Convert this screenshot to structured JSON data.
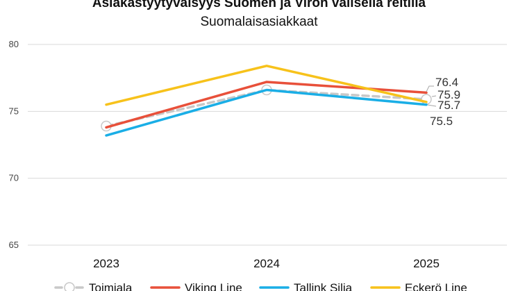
{
  "chart_data": {
    "type": "line",
    "title": "Asiakastyytyväisyys Suomen ja Viron välisellä reitillä",
    "subtitle": "Suomalaisasiakkaat",
    "categories": [
      "2023",
      "2024",
      "2025"
    ],
    "ylim": [
      65,
      80
    ],
    "yticks": [
      65,
      70,
      75,
      80
    ],
    "grid": true,
    "legend_position": "bottom",
    "series": [
      {
        "name": "Toimiala",
        "values": [
          73.9,
          76.6,
          75.9
        ],
        "color": "#c8c8c8",
        "dashed": true,
        "markers": true,
        "last_label": "75.9"
      },
      {
        "name": "Viking Line",
        "values": [
          73.8,
          77.2,
          76.4
        ],
        "color": "#e8503a",
        "last_label": "76.4"
      },
      {
        "name": "Tallink Silja",
        "values": [
          73.2,
          76.6,
          75.5
        ],
        "color": "#1aaee6",
        "last_label": "75.5"
      },
      {
        "name": "Eckerö Line",
        "values": [
          75.5,
          78.4,
          75.7
        ],
        "color": "#f7c21b",
        "last_label": "75.7"
      }
    ]
  }
}
